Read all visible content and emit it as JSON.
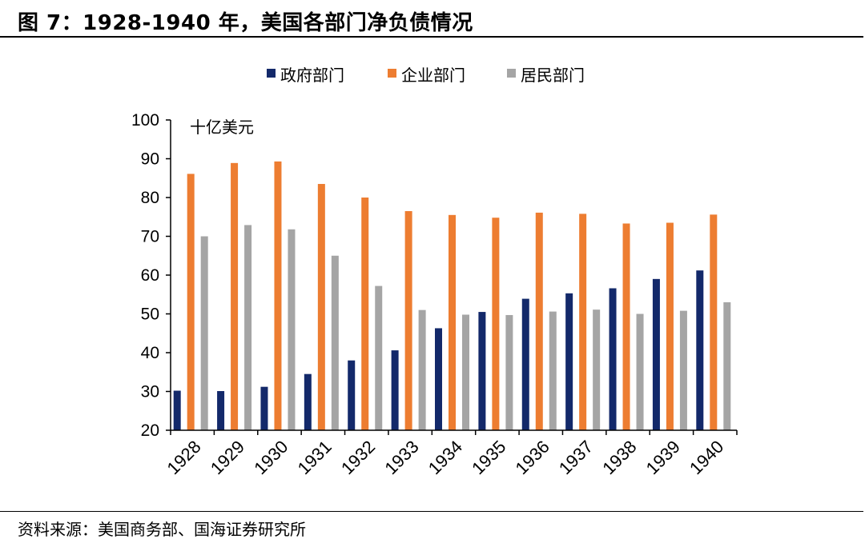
{
  "figure": {
    "title": "图 7：1928-1940 年，美国各部门净负债情况",
    "source": "资料来源：美国商务部、国海证券研究所"
  },
  "chart_data": {
    "type": "bar",
    "title": "",
    "unit_label": "十亿美元",
    "categories": [
      "1928",
      "1929",
      "1930",
      "1931",
      "1932",
      "1933",
      "1934",
      "1935",
      "1936",
      "1937",
      "1938",
      "1939",
      "1940"
    ],
    "series": [
      {
        "name": "政府部门",
        "color": "#13296A",
        "values": [
          30.2,
          30.1,
          31.2,
          34.5,
          38.0,
          40.6,
          46.3,
          50.5,
          53.9,
          55.3,
          56.6,
          59.0,
          61.2
        ]
      },
      {
        "name": "企业部门",
        "color": "#ED7D31",
        "values": [
          86.1,
          88.9,
          89.3,
          83.5,
          80.0,
          76.5,
          75.5,
          74.8,
          76.1,
          75.8,
          73.3,
          73.5,
          75.6
        ]
      },
      {
        "name": "居民部门",
        "color": "#A5A5A5",
        "values": [
          70.0,
          72.9,
          71.8,
          65.0,
          57.2,
          51.0,
          49.8,
          49.7,
          50.6,
          51.1,
          50.0,
          50.8,
          53.0
        ]
      }
    ],
    "ylim": [
      20,
      100
    ],
    "yticks": [
      20,
      30,
      40,
      50,
      60,
      70,
      80,
      90,
      100
    ],
    "legend_position": "top",
    "grid": false
  }
}
